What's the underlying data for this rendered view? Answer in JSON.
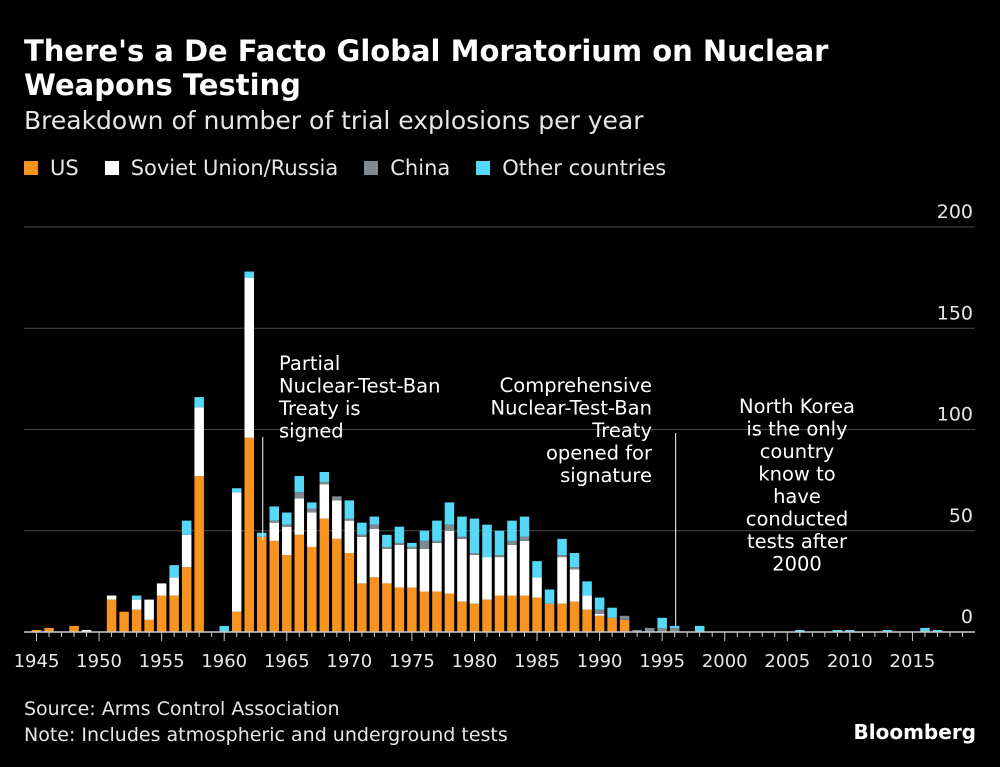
{
  "title": "There's a De Facto Global Moratorium on Nuclear Weapons Testing",
  "subtitle": "Breakdown of number of trial explosions per year",
  "source": "Source: Arms Control Association",
  "note": "Note: Includes atmospheric and underground tests",
  "brand": "Bloomberg",
  "colors": {
    "us": "#f7931e",
    "soviet": "#ffffff",
    "china": "#7d8a8f",
    "other": "#56d9f7",
    "grid": "#4a4a4a",
    "background": "#000000"
  },
  "legend": [
    {
      "label": "US",
      "color": "#f7931e"
    },
    {
      "label": "Soviet Union/Russia",
      "color": "#ffffff"
    },
    {
      "label": "China",
      "color": "#7d8a8f"
    },
    {
      "label": "Other countries",
      "color": "#56d9f7"
    }
  ],
  "chart_data": {
    "type": "bar",
    "stacked": true,
    "ylim": [
      0,
      200
    ],
    "yticks": [
      0,
      50,
      100,
      150,
      200
    ],
    "y_axis_position": "right",
    "xlim": [
      1944,
      2020
    ],
    "xticks": [
      1945,
      1950,
      1955,
      1960,
      1965,
      1970,
      1975,
      1980,
      1985,
      1990,
      1995,
      2000,
      2005,
      2010,
      2015
    ],
    "grid": true,
    "legend_position": "top-left",
    "x": [
      1945,
      1946,
      1948,
      1949,
      1951,
      1952,
      1953,
      1954,
      1955,
      1956,
      1957,
      1958,
      1960,
      1961,
      1962,
      1963,
      1964,
      1965,
      1966,
      1967,
      1968,
      1969,
      1970,
      1971,
      1972,
      1973,
      1974,
      1975,
      1976,
      1977,
      1978,
      1979,
      1980,
      1981,
      1982,
      1983,
      1984,
      1985,
      1986,
      1987,
      1988,
      1989,
      1990,
      1991,
      1992,
      1993,
      1994,
      1995,
      1996,
      1998,
      2006,
      2009,
      2010,
      2013,
      2016,
      2017
    ],
    "series": [
      {
        "name": "US",
        "values": [
          1,
          2,
          3,
          0,
          16,
          10,
          11,
          6,
          18,
          18,
          32,
          77,
          0,
          10,
          96,
          47,
          45,
          38,
          48,
          42,
          56,
          46,
          39,
          24,
          27,
          24,
          22,
          22,
          20,
          20,
          19,
          15,
          14,
          16,
          18,
          18,
          18,
          17,
          14,
          14,
          15,
          11,
          8,
          7,
          6,
          0,
          0,
          0,
          0,
          0,
          0,
          0,
          0,
          0,
          0,
          0
        ]
      },
      {
        "name": "Soviet Union/Russia",
        "values": [
          0,
          0,
          0,
          1,
          2,
          0,
          5,
          10,
          6,
          9,
          16,
          34,
          0,
          59,
          79,
          0,
          9,
          14,
          18,
          17,
          17,
          19,
          16,
          23,
          24,
          17,
          21,
          19,
          21,
          24,
          31,
          31,
          24,
          21,
          19,
          25,
          27,
          10,
          0,
          23,
          16,
          7,
          1,
          0,
          0,
          0,
          0,
          0,
          0,
          0,
          0,
          0,
          0,
          0,
          0,
          0
        ]
      },
      {
        "name": "China",
        "values": [
          0,
          0,
          0,
          0,
          0,
          0,
          0,
          0,
          0,
          0,
          0,
          0,
          0,
          0,
          0,
          0,
          1,
          1,
          3,
          2,
          1,
          2,
          1,
          1,
          2,
          1,
          1,
          1,
          4,
          1,
          3,
          1,
          1,
          0,
          1,
          2,
          2,
          0,
          0,
          1,
          1,
          0,
          2,
          0,
          2,
          1,
          2,
          2,
          2,
          0,
          0,
          0,
          0,
          0,
          0,
          0
        ]
      },
      {
        "name": "Other countries",
        "values": [
          0,
          0,
          0,
          0,
          0,
          0,
          2,
          0,
          0,
          6,
          7,
          5,
          3,
          2,
          3,
          2,
          7,
          6,
          8,
          3,
          5,
          0,
          9,
          6,
          4,
          6,
          8,
          2,
          5,
          10,
          11,
          10,
          17,
          16,
          12,
          10,
          10,
          8,
          7,
          8,
          7,
          7,
          6,
          5,
          0,
          0,
          0,
          5,
          1,
          3,
          1,
          1,
          1,
          1,
          2,
          1
        ]
      }
    ]
  },
  "annotations": [
    {
      "year": 1963,
      "lines": [
        "Partial",
        "Nuclear-Test-Ban",
        "Treaty is",
        "signed"
      ]
    },
    {
      "year": 1996,
      "lines": [
        "Comprehensive",
        "Nuclear-Test-Ban",
        "Treaty",
        "opened for",
        "signature"
      ]
    },
    {
      "year": 2007,
      "lines": [
        "North Korea",
        "is the only",
        "country",
        "know to",
        "have",
        "conducted",
        "tests after",
        "2000"
      ]
    }
  ]
}
